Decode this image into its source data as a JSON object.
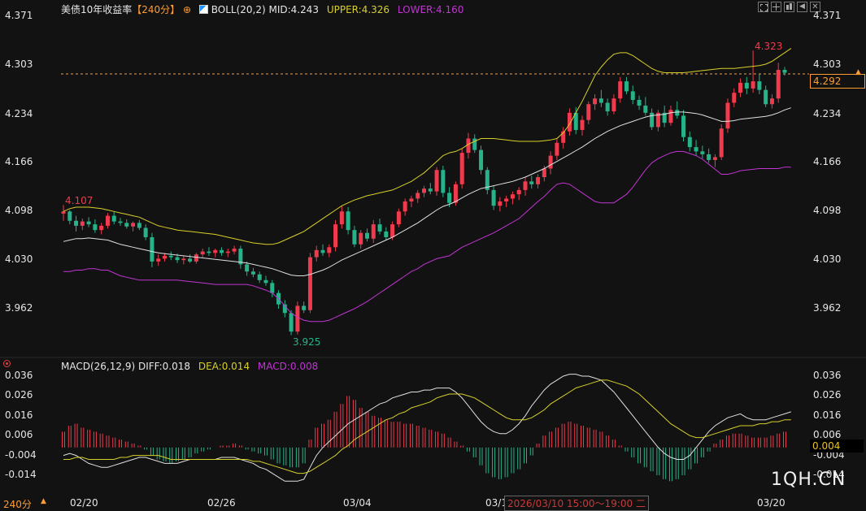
{
  "header": {
    "title": "美债10年收益率",
    "period": "【240分】",
    "period_icon": "plus-circle-icon",
    "boll_icon": "indicator-toggle-icon",
    "boll_label": "BOLL(20,2)",
    "mid": "MID:4.243",
    "upper": "UPPER:4.326",
    "lower": "LOWER:4.160"
  },
  "macd_header": {
    "icon": "target-icon",
    "label": "MACD(26,12,9)",
    "diff": "DIFF:0.018",
    "dea": "DEA:0.014",
    "macd": "MACD:0.008"
  },
  "toolbar": [
    "fullscreen-icon",
    "crosshair-icon",
    "chart-type-icon",
    "prev-icon",
    "close-icon"
  ],
  "price_axis": [
    "4.371",
    "4.303",
    "4.234",
    "4.166",
    "4.098",
    "4.030",
    "3.962"
  ],
  "macd_axis": [
    "0.036",
    "0.026",
    "0.016",
    "0.006",
    "-0.004",
    "-0.014"
  ],
  "macd_axis_right": [
    "0.036",
    "0.026",
    "0.016",
    "0.006",
    "-0.004",
    "-0.014"
  ],
  "current_price": "4.292",
  "current_macd": "0.004",
  "annotations": {
    "high": "4.323",
    "low": "3.925",
    "left_high": "4.107"
  },
  "x_axis": {
    "period_label": "240分",
    "dates": [
      "02/20",
      "02/26",
      "03/04",
      "03/1",
      "4",
      "03/20"
    ]
  },
  "tooltip": {
    "text": "2026/03/10 15:00～19:00 二"
  },
  "watermark": "1QH.CN",
  "colors": {
    "up": "#ef3b4d",
    "down": "#27b38a",
    "mid": "#e0e0e0",
    "upper": "#d8d02a",
    "lower": "#c234d4",
    "dea": "#d8d02a",
    "diff": "#e0e0e0"
  },
  "chart_data": {
    "type": "candlestick",
    "price_range": [
      3.93,
      4.37
    ],
    "candles": [
      [
        4.095,
        4.107,
        4.085,
        4.098
      ],
      [
        4.098,
        4.1,
        4.08,
        4.085
      ],
      [
        4.085,
        4.092,
        4.07,
        4.078
      ],
      [
        4.078,
        4.088,
        4.072,
        4.084
      ],
      [
        4.084,
        4.09,
        4.076,
        4.08
      ],
      [
        4.08,
        4.087,
        4.068,
        4.072
      ],
      [
        4.072,
        4.082,
        4.066,
        4.078
      ],
      [
        4.078,
        4.096,
        4.074,
        4.092
      ],
      [
        4.092,
        4.098,
        4.08,
        4.084
      ],
      [
        4.084,
        4.089,
        4.078,
        4.082
      ],
      [
        4.082,
        4.087,
        4.074,
        4.077
      ],
      [
        4.077,
        4.084,
        4.07,
        4.082
      ],
      [
        4.082,
        4.086,
        4.072,
        4.075
      ],
      [
        4.075,
        4.08,
        4.058,
        4.062
      ],
      [
        4.062,
        4.068,
        4.02,
        4.028
      ],
      [
        4.028,
        4.038,
        4.022,
        4.032
      ],
      [
        4.032,
        4.04,
        4.028,
        4.036
      ],
      [
        4.036,
        4.042,
        4.03,
        4.034
      ],
      [
        4.034,
        4.039,
        4.026,
        4.03
      ],
      [
        4.03,
        4.036,
        4.024,
        4.032
      ],
      [
        4.032,
        4.038,
        4.026,
        4.028
      ],
      [
        4.028,
        4.04,
        4.025,
        4.038
      ],
      [
        4.038,
        4.046,
        4.034,
        4.042
      ],
      [
        4.042,
        4.048,
        4.036,
        4.04
      ],
      [
        4.04,
        4.046,
        4.034,
        4.044
      ],
      [
        4.044,
        4.048,
        4.036,
        4.04
      ],
      [
        4.04,
        4.046,
        4.034,
        4.042
      ],
      [
        4.042,
        4.05,
        4.038,
        4.046
      ],
      [
        4.046,
        4.05,
        4.018,
        4.024
      ],
      [
        4.024,
        4.028,
        4.008,
        4.014
      ],
      [
        4.014,
        4.019,
        4.006,
        4.01
      ],
      [
        4.01,
        4.014,
        3.998,
        4.002
      ],
      [
        4.002,
        4.008,
        3.994,
        3.998
      ],
      [
        3.998,
        4.002,
        3.978,
        3.984
      ],
      [
        3.984,
        3.988,
        3.962,
        3.968
      ],
      [
        3.968,
        3.974,
        3.95,
        3.956
      ],
      [
        3.956,
        3.96,
        3.925,
        3.93
      ],
      [
        3.93,
        3.972,
        3.926,
        3.966
      ],
      [
        3.966,
        3.972,
        3.956,
        3.96
      ],
      [
        3.96,
        4.04,
        3.956,
        4.034
      ],
      [
        4.034,
        4.05,
        4.028,
        4.044
      ],
      [
        4.044,
        4.052,
        4.036,
        4.04
      ],
      [
        4.04,
        4.052,
        4.034,
        4.048
      ],
      [
        4.048,
        4.086,
        4.042,
        4.08
      ],
      [
        4.08,
        4.106,
        4.074,
        4.098
      ],
      [
        4.098,
        4.104,
        4.066,
        4.072
      ],
      [
        4.072,
        4.078,
        4.048,
        4.052
      ],
      [
        4.052,
        4.072,
        4.046,
        4.068
      ],
      [
        4.068,
        4.074,
        4.056,
        4.06
      ],
      [
        4.06,
        4.086,
        4.054,
        4.08
      ],
      [
        4.08,
        4.088,
        4.066,
        4.07
      ],
      [
        4.07,
        4.076,
        4.058,
        4.062
      ],
      [
        4.062,
        4.084,
        4.058,
        4.08
      ],
      [
        4.08,
        4.102,
        4.076,
        4.098
      ],
      [
        4.098,
        4.116,
        4.092,
        4.112
      ],
      [
        4.112,
        4.12,
        4.104,
        4.116
      ],
      [
        4.116,
        4.128,
        4.11,
        4.124
      ],
      [
        4.124,
        4.134,
        4.118,
        4.13
      ],
      [
        4.13,
        4.138,
        4.122,
        4.126
      ],
      [
        4.126,
        4.16,
        4.12,
        4.156
      ],
      [
        4.156,
        4.162,
        4.118,
        4.124
      ],
      [
        4.124,
        4.132,
        4.104,
        4.11
      ],
      [
        4.11,
        4.14,
        4.106,
        4.136
      ],
      [
        4.136,
        4.186,
        4.13,
        4.18
      ],
      [
        4.18,
        4.208,
        4.172,
        4.2
      ],
      [
        4.2,
        4.206,
        4.18,
        4.184
      ],
      [
        4.184,
        4.19,
        4.15,
        4.156
      ],
      [
        4.156,
        4.16,
        4.122,
        4.128
      ],
      [
        4.128,
        4.134,
        4.1,
        4.106
      ],
      [
        4.106,
        4.118,
        4.098,
        4.112
      ],
      [
        4.112,
        4.12,
        4.104,
        4.116
      ],
      [
        4.116,
        4.126,
        4.108,
        4.122
      ],
      [
        4.122,
        4.132,
        4.114,
        4.128
      ],
      [
        4.128,
        4.146,
        4.12,
        4.14
      ],
      [
        4.14,
        4.148,
        4.13,
        4.136
      ],
      [
        4.136,
        4.15,
        4.13,
        4.146
      ],
      [
        4.146,
        4.162,
        4.14,
        4.158
      ],
      [
        4.158,
        4.182,
        4.15,
        4.176
      ],
      [
        4.176,
        4.2,
        4.17,
        4.194
      ],
      [
        4.194,
        4.216,
        4.186,
        4.21
      ],
      [
        4.21,
        4.242,
        4.204,
        4.236
      ],
      [
        4.236,
        4.244,
        4.206,
        4.212
      ],
      [
        4.212,
        4.232,
        4.204,
        4.226
      ],
      [
        4.226,
        4.252,
        4.22,
        4.248
      ],
      [
        4.248,
        4.262,
        4.24,
        4.256
      ],
      [
        4.256,
        4.268,
        4.244,
        4.25
      ],
      [
        4.25,
        4.256,
        4.232,
        4.238
      ],
      [
        4.238,
        4.262,
        4.234,
        4.256
      ],
      [
        4.256,
        4.286,
        4.25,
        4.28
      ],
      [
        4.28,
        4.286,
        4.262,
        4.266
      ],
      [
        4.266,
        4.274,
        4.248,
        4.254
      ],
      [
        4.254,
        4.26,
        4.24,
        4.246
      ],
      [
        4.246,
        4.258,
        4.232,
        4.236
      ],
      [
        4.236,
        4.242,
        4.212,
        4.216
      ],
      [
        4.216,
        4.24,
        4.21,
        4.236
      ],
      [
        4.236,
        4.246,
        4.216,
        4.222
      ],
      [
        4.222,
        4.246,
        4.218,
        4.24
      ],
      [
        4.24,
        4.252,
        4.228,
        4.232
      ],
      [
        4.232,
        4.24,
        4.196,
        4.202
      ],
      [
        4.202,
        4.21,
        4.182,
        4.188
      ],
      [
        4.188,
        4.198,
        4.176,
        4.182
      ],
      [
        4.182,
        4.19,
        4.172,
        4.178
      ],
      [
        4.178,
        4.186,
        4.166,
        4.17
      ],
      [
        4.17,
        4.178,
        4.16,
        4.174
      ],
      [
        4.174,
        4.22,
        4.17,
        4.214
      ],
      [
        4.214,
        4.256,
        4.208,
        4.25
      ],
      [
        4.25,
        4.27,
        4.244,
        4.264
      ],
      [
        4.264,
        4.284,
        4.258,
        4.278
      ],
      [
        4.278,
        4.286,
        4.262,
        4.27
      ],
      [
        4.27,
        4.323,
        4.264,
        4.28
      ],
      [
        4.28,
        4.29,
        4.262,
        4.268
      ],
      [
        4.268,
        4.274,
        4.244,
        4.248
      ],
      [
        4.248,
        4.262,
        4.242,
        4.256
      ],
      [
        4.256,
        4.306,
        4.25,
        4.296
      ],
      [
        4.296,
        4.3,
        4.288,
        4.292
      ]
    ],
    "boll_mid": [
      4.056,
      4.058,
      4.06,
      4.06,
      4.061,
      4.06,
      4.059,
      4.058,
      4.055,
      4.052,
      4.05,
      4.048,
      4.046,
      4.044,
      4.042,
      4.04,
      4.039,
      4.038,
      4.037,
      4.036,
      4.035,
      4.034,
      4.033,
      4.032,
      4.031,
      4.03,
      4.029,
      4.028,
      4.027,
      4.026,
      4.024,
      4.022,
      4.02,
      4.018,
      4.015,
      4.012,
      4.009,
      4.008,
      4.008,
      4.01,
      4.013,
      4.016,
      4.02,
      4.025,
      4.03,
      4.034,
      4.038,
      4.042,
      4.046,
      4.05,
      4.054,
      4.058,
      4.062,
      4.067,
      4.072,
      4.077,
      4.082,
      4.088,
      4.094,
      4.1,
      4.105,
      4.108,
      4.112,
      4.117,
      4.122,
      4.126,
      4.13,
      4.132,
      4.134,
      4.136,
      4.138,
      4.14,
      4.143,
      4.146,
      4.15,
      4.154,
      4.158,
      4.163,
      4.168,
      4.173,
      4.178,
      4.183,
      4.188,
      4.194,
      4.2,
      4.205,
      4.21,
      4.214,
      4.218,
      4.221,
      4.224,
      4.227,
      4.23,
      4.232,
      4.233,
      4.234,
      4.236,
      4.237,
      4.237,
      4.236,
      4.235,
      4.233,
      4.23,
      4.227,
      4.224,
      4.224,
      4.225,
      4.227,
      4.228,
      4.229,
      4.23,
      4.231,
      4.233,
      4.236,
      4.24,
      4.243
    ],
    "boll_upper": [
      4.098,
      4.102,
      4.104,
      4.104,
      4.104,
      4.103,
      4.102,
      4.1,
      4.098,
      4.096,
      4.094,
      4.092,
      4.09,
      4.086,
      4.082,
      4.078,
      4.076,
      4.074,
      4.072,
      4.071,
      4.07,
      4.069,
      4.068,
      4.067,
      4.066,
      4.064,
      4.062,
      4.06,
      4.058,
      4.056,
      4.054,
      4.053,
      4.052,
      4.052,
      4.054,
      4.058,
      4.062,
      4.066,
      4.07,
      4.076,
      4.082,
      4.088,
      4.094,
      4.1,
      4.106,
      4.11,
      4.114,
      4.117,
      4.12,
      4.122,
      4.124,
      4.126,
      4.128,
      4.132,
      4.136,
      4.14,
      4.146,
      4.152,
      4.16,
      4.168,
      4.176,
      4.18,
      4.182,
      4.186,
      4.192,
      4.196,
      4.2,
      4.2,
      4.2,
      4.199,
      4.198,
      4.197,
      4.196,
      4.196,
      4.196,
      4.196,
      4.197,
      4.198,
      4.2,
      4.208,
      4.22,
      4.236,
      4.252,
      4.27,
      4.288,
      4.3,
      4.31,
      4.318,
      4.32,
      4.32,
      4.316,
      4.31,
      4.304,
      4.298,
      4.294,
      4.292,
      4.292,
      4.292,
      4.292,
      4.293,
      4.294,
      4.295,
      4.296,
      4.297,
      4.298,
      4.298,
      4.298,
      4.299,
      4.3,
      4.301,
      4.302,
      4.304,
      4.308,
      4.314,
      4.32,
      4.326
    ],
    "boll_lower": [
      4.014,
      4.014,
      4.016,
      4.016,
      4.018,
      4.018,
      4.016,
      4.016,
      4.012,
      4.008,
      4.006,
      4.004,
      4.002,
      4.002,
      4.002,
      4.002,
      4.002,
      4.002,
      4.002,
      4.001,
      4.0,
      3.999,
      3.998,
      3.997,
      3.996,
      3.996,
      3.996,
      3.996,
      3.996,
      3.996,
      3.994,
      3.991,
      3.988,
      3.984,
      3.976,
      3.966,
      3.956,
      3.95,
      3.946,
      3.944,
      3.944,
      3.944,
      3.946,
      3.95,
      3.954,
      3.958,
      3.962,
      3.967,
      3.972,
      3.978,
      3.984,
      3.99,
      3.996,
      4.002,
      4.008,
      4.014,
      4.018,
      4.024,
      4.028,
      4.032,
      4.034,
      4.036,
      4.042,
      4.048,
      4.052,
      4.056,
      4.06,
      4.064,
      4.068,
      4.073,
      4.078,
      4.083,
      4.088,
      4.096,
      4.104,
      4.112,
      4.119,
      4.128,
      4.136,
      4.138,
      4.136,
      4.13,
      4.124,
      4.118,
      4.112,
      4.11,
      4.11,
      4.11,
      4.116,
      4.122,
      4.132,
      4.144,
      4.156,
      4.166,
      4.172,
      4.176,
      4.18,
      4.182,
      4.182,
      4.179,
      4.176,
      4.171,
      4.164,
      4.157,
      4.15,
      4.15,
      4.152,
      4.155,
      4.156,
      4.157,
      4.158,
      4.158,
      4.158,
      4.158,
      4.16,
      4.16
    ],
    "macd_range": [
      -0.017,
      0.038
    ],
    "macd_hist": [
      0.008,
      0.011,
      0.012,
      0.01,
      0.009,
      0.008,
      0.007,
      0.006,
      0.005,
      0.004,
      0.003,
      0.002,
      0.001,
      -0.001,
      -0.004,
      -0.006,
      -0.007,
      -0.008,
      -0.007,
      -0.006,
      -0.005,
      -0.003,
      -0.002,
      -0.001,
      0.0,
      0.001,
      0.001,
      0.002,
      0.001,
      -0.001,
      -0.002,
      -0.003,
      -0.004,
      -0.006,
      -0.008,
      -0.009,
      -0.01,
      -0.01,
      -0.008,
      0.004,
      0.01,
      0.012,
      0.014,
      0.018,
      0.022,
      0.026,
      0.024,
      0.02,
      0.018,
      0.016,
      0.015,
      0.014,
      0.013,
      0.013,
      0.012,
      0.012,
      0.011,
      0.01,
      0.009,
      0.008,
      0.007,
      0.005,
      0.003,
      0.001,
      -0.002,
      -0.005,
      -0.009,
      -0.013,
      -0.015,
      -0.016,
      -0.015,
      -0.013,
      -0.011,
      -0.008,
      -0.004,
      0.002,
      0.006,
      0.008,
      0.01,
      0.012,
      0.013,
      0.012,
      0.011,
      0.01,
      0.009,
      0.008,
      0.006,
      0.004,
      0.001,
      -0.002,
      -0.005,
      -0.008,
      -0.01,
      -0.012,
      -0.014,
      -0.016,
      -0.017,
      -0.016,
      -0.014,
      -0.011,
      -0.008,
      -0.005,
      -0.002,
      0.002,
      0.004,
      0.006,
      0.007,
      0.007,
      0.006,
      0.005,
      0.005,
      0.005,
      0.006,
      0.007,
      0.008
    ],
    "macd_diff": [
      -0.004,
      -0.003,
      -0.004,
      -0.006,
      -0.008,
      -0.009,
      -0.01,
      -0.01,
      -0.009,
      -0.008,
      -0.007,
      -0.006,
      -0.005,
      -0.005,
      -0.006,
      -0.007,
      -0.008,
      -0.008,
      -0.008,
      -0.007,
      -0.006,
      -0.006,
      -0.006,
      -0.006,
      -0.006,
      -0.005,
      -0.005,
      -0.005,
      -0.006,
      -0.007,
      -0.008,
      -0.01,
      -0.011,
      -0.013,
      -0.015,
      -0.017,
      -0.017,
      -0.017,
      -0.016,
      -0.01,
      -0.004,
      0.0,
      0.003,
      0.006,
      0.009,
      0.012,
      0.014,
      0.016,
      0.018,
      0.02,
      0.022,
      0.023,
      0.025,
      0.026,
      0.027,
      0.028,
      0.028,
      0.029,
      0.029,
      0.03,
      0.03,
      0.03,
      0.028,
      0.025,
      0.021,
      0.017,
      0.013,
      0.01,
      0.008,
      0.007,
      0.007,
      0.009,
      0.012,
      0.016,
      0.021,
      0.025,
      0.029,
      0.032,
      0.034,
      0.036,
      0.037,
      0.037,
      0.036,
      0.036,
      0.035,
      0.034,
      0.031,
      0.028,
      0.024,
      0.02,
      0.016,
      0.012,
      0.008,
      0.004,
      0.0,
      -0.003,
      -0.005,
      -0.006,
      -0.006,
      -0.004,
      0.0,
      0.004,
      0.008,
      0.011,
      0.013,
      0.015,
      0.016,
      0.017,
      0.015,
      0.014,
      0.014,
      0.014,
      0.015,
      0.016,
      0.017,
      0.018
    ],
    "macd_dea": [
      -0.006,
      -0.006,
      -0.005,
      -0.005,
      -0.006,
      -0.006,
      -0.006,
      -0.006,
      -0.006,
      -0.005,
      -0.005,
      -0.004,
      -0.004,
      -0.004,
      -0.004,
      -0.004,
      -0.005,
      -0.006,
      -0.006,
      -0.006,
      -0.006,
      -0.006,
      -0.006,
      -0.006,
      -0.006,
      -0.006,
      -0.006,
      -0.006,
      -0.006,
      -0.006,
      -0.007,
      -0.007,
      -0.008,
      -0.009,
      -0.01,
      -0.011,
      -0.012,
      -0.013,
      -0.013,
      -0.012,
      -0.01,
      -0.008,
      -0.006,
      -0.004,
      -0.001,
      0.001,
      0.004,
      0.006,
      0.008,
      0.01,
      0.012,
      0.014,
      0.015,
      0.017,
      0.018,
      0.02,
      0.021,
      0.022,
      0.023,
      0.025,
      0.026,
      0.027,
      0.027,
      0.027,
      0.026,
      0.025,
      0.023,
      0.021,
      0.019,
      0.017,
      0.015,
      0.014,
      0.014,
      0.014,
      0.015,
      0.017,
      0.019,
      0.022,
      0.024,
      0.026,
      0.028,
      0.03,
      0.031,
      0.032,
      0.033,
      0.034,
      0.034,
      0.033,
      0.032,
      0.031,
      0.029,
      0.027,
      0.024,
      0.021,
      0.018,
      0.015,
      0.012,
      0.01,
      0.008,
      0.006,
      0.005,
      0.005,
      0.006,
      0.007,
      0.008,
      0.009,
      0.01,
      0.011,
      0.011,
      0.011,
      0.012,
      0.012,
      0.013,
      0.013,
      0.014,
      0.014
    ]
  }
}
